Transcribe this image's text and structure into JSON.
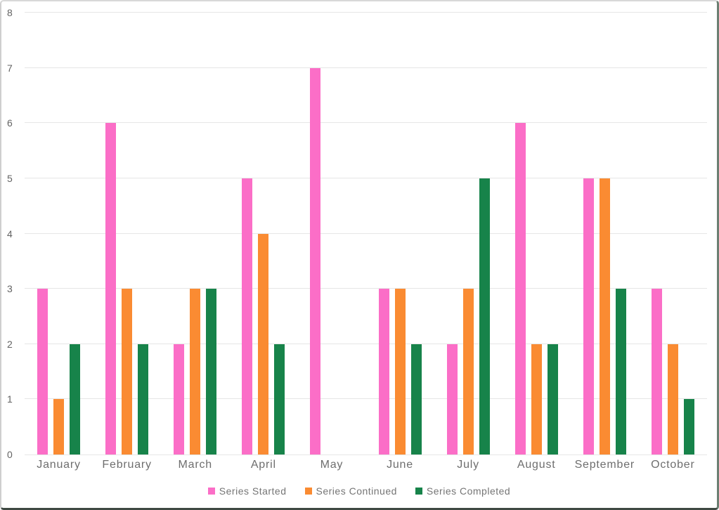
{
  "chart_data": {
    "type": "bar",
    "title": "",
    "categories": [
      "January",
      "February",
      "March",
      "April",
      "May",
      "June",
      "July",
      "August",
      "September",
      "October"
    ],
    "series": [
      {
        "name": "Series Started",
        "color": "#FB6EC7",
        "values": [
          3,
          6,
          2,
          5,
          7,
          3,
          2,
          6,
          5,
          3
        ]
      },
      {
        "name": "Series Continued",
        "color": "#FA8B32",
        "values": [
          1,
          3,
          3,
          4,
          0,
          3,
          3,
          2,
          5,
          2
        ]
      },
      {
        "name": "Series Completed",
        "color": "#17834A",
        "values": [
          2,
          2,
          3,
          2,
          0,
          2,
          5,
          2,
          3,
          1
        ]
      }
    ],
    "y_axis": {
      "min": 0,
      "max": 8,
      "step": 1,
      "tick_labels": [
        "0",
        "1",
        "2",
        "3",
        "4",
        "5",
        "6",
        "7",
        "8"
      ]
    },
    "grid": true,
    "legend_position": "bottom",
    "colors": {
      "background": "#FFFFFF",
      "gridline": "#E6E6E6",
      "tick_text": "#636363",
      "category_text": "#6E6E6E",
      "legend_text": "#757575"
    }
  }
}
